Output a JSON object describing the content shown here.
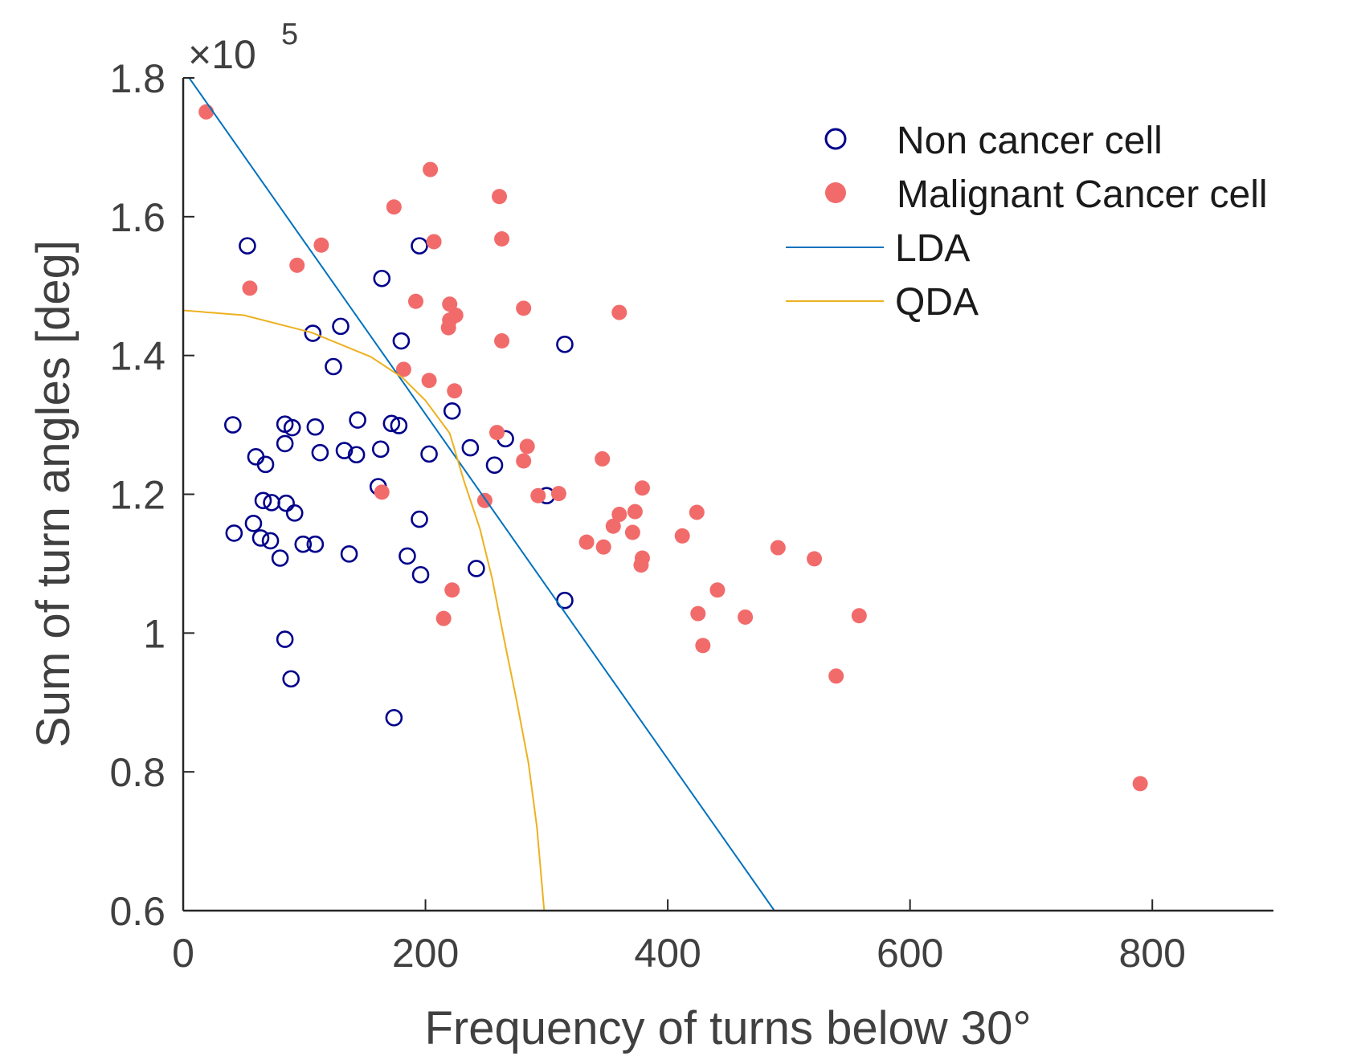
{
  "chart_data": {
    "type": "scatter",
    "title": "",
    "xlabel": "Frequency of turns below 30°",
    "ylabel": "Sum of turn angles [deg]",
    "y_multiplier_label": "×10",
    "y_multiplier_exponent": "5",
    "xlim": [
      0,
      900
    ],
    "ylim": [
      0.6,
      1.8
    ],
    "xticks": [
      0,
      200,
      400,
      600,
      800
    ],
    "xtick_labels": [
      "0",
      "200",
      "400",
      "600",
      "800"
    ],
    "yticks": [
      0.6,
      0.8,
      1.0,
      1.2,
      1.4,
      1.6,
      1.8
    ],
    "ytick_labels": [
      "0.6",
      "0.8",
      "1",
      "1.2",
      "1.4",
      "1.6",
      "1.8"
    ],
    "grid": false,
    "legend_position": "top-right",
    "series": [
      {
        "name": "Non cancer cell",
        "marker": "open-circle",
        "color": "#00008b",
        "points": [
          [
            53,
            1.558
          ],
          [
            195,
            1.558
          ],
          [
            164,
            1.511
          ],
          [
            315,
            1.416
          ],
          [
            107,
            1.432
          ],
          [
            130,
            1.442
          ],
          [
            180,
            1.421
          ],
          [
            124,
            1.384
          ],
          [
            222,
            1.32
          ],
          [
            41,
            1.3
          ],
          [
            84,
            1.301
          ],
          [
            90,
            1.296
          ],
          [
            109,
            1.297
          ],
          [
            144,
            1.307
          ],
          [
            172,
            1.302
          ],
          [
            178,
            1.299
          ],
          [
            84,
            1.273
          ],
          [
            266,
            1.28
          ],
          [
            237,
            1.267
          ],
          [
            60,
            1.254
          ],
          [
            68,
            1.243
          ],
          [
            113,
            1.26
          ],
          [
            133,
            1.263
          ],
          [
            143,
            1.257
          ],
          [
            163,
            1.265
          ],
          [
            203,
            1.258
          ],
          [
            257,
            1.242
          ],
          [
            161,
            1.211
          ],
          [
            300,
            1.198
          ],
          [
            66,
            1.191
          ],
          [
            73,
            1.188
          ],
          [
            85,
            1.187
          ],
          [
            92,
            1.173
          ],
          [
            195,
            1.164
          ],
          [
            58,
            1.158
          ],
          [
            42,
            1.144
          ],
          [
            64,
            1.137
          ],
          [
            72,
            1.133
          ],
          [
            99,
            1.128
          ],
          [
            109,
            1.128
          ],
          [
            137,
            1.114
          ],
          [
            185,
            1.111
          ],
          [
            80,
            1.108
          ],
          [
            242,
            1.093
          ],
          [
            196,
            1.084
          ],
          [
            315,
            1.047
          ],
          [
            84,
            0.991
          ],
          [
            89,
            0.934
          ],
          [
            174,
            0.878
          ]
        ]
      },
      {
        "name": "Malignant Cancer cell",
        "marker": "filled-circle",
        "color": "#f26b6b",
        "points": [
          [
            19,
            1.751
          ],
          [
            204,
            1.668
          ],
          [
            174,
            1.614
          ],
          [
            261,
            1.629
          ],
          [
            263,
            1.568
          ],
          [
            114,
            1.559
          ],
          [
            207,
            1.564
          ],
          [
            94,
            1.53
          ],
          [
            55,
            1.497
          ],
          [
            192,
            1.478
          ],
          [
            220,
            1.474
          ],
          [
            225,
            1.458
          ],
          [
            220,
            1.451
          ],
          [
            219,
            1.44
          ],
          [
            281,
            1.468
          ],
          [
            360,
            1.462
          ],
          [
            263,
            1.421
          ],
          [
            182,
            1.38
          ],
          [
            203,
            1.364
          ],
          [
            224,
            1.349
          ],
          [
            259,
            1.289
          ],
          [
            284,
            1.269
          ],
          [
            281,
            1.248
          ],
          [
            346,
            1.251
          ],
          [
            164,
            1.203
          ],
          [
            293,
            1.198
          ],
          [
            310,
            1.201
          ],
          [
            249,
            1.191
          ],
          [
            379,
            1.209
          ],
          [
            373,
            1.175
          ],
          [
            360,
            1.171
          ],
          [
            424,
            1.174
          ],
          [
            355,
            1.154
          ],
          [
            371,
            1.145
          ],
          [
            412,
            1.14
          ],
          [
            333,
            1.131
          ],
          [
            347,
            1.124
          ],
          [
            491,
            1.123
          ],
          [
            379,
            1.108
          ],
          [
            521,
            1.107
          ],
          [
            378,
            1.098
          ],
          [
            222,
            1.062
          ],
          [
            441,
            1.062
          ],
          [
            215,
            1.021
          ],
          [
            425,
            1.028
          ],
          [
            464,
            1.023
          ],
          [
            558,
            1.025
          ],
          [
            429,
            0.982
          ],
          [
            539,
            0.938
          ],
          [
            790,
            0.783
          ]
        ]
      },
      {
        "name": "LDA",
        "marker": "line",
        "color": "#0072bd",
        "points": [
          [
            5,
            1.8
          ],
          [
            488,
            0.6
          ]
        ]
      },
      {
        "name": "QDA",
        "marker": "line",
        "color": "#edb120",
        "points": [
          [
            0,
            1.465
          ],
          [
            50,
            1.458
          ],
          [
            106,
            1.433
          ],
          [
            155,
            1.398
          ],
          [
            181,
            1.368
          ],
          [
            200,
            1.335
          ],
          [
            220,
            1.288
          ],
          [
            232,
            1.218
          ],
          [
            245,
            1.15
          ],
          [
            255,
            1.079
          ],
          [
            265,
            0.99
          ],
          [
            275,
            0.905
          ],
          [
            285,
            0.813
          ],
          [
            292,
            0.72
          ],
          [
            298,
            0.6
          ]
        ]
      }
    ]
  }
}
